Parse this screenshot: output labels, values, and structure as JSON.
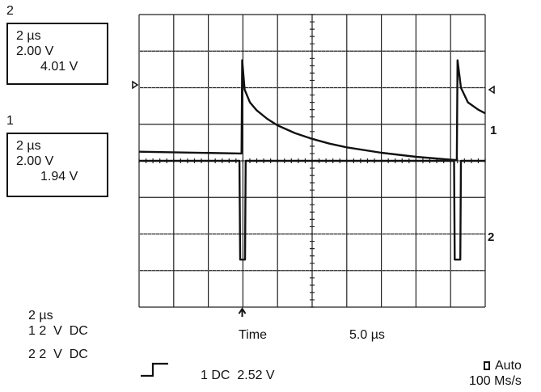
{
  "channel2_box": {
    "number": "2",
    "timebase": "2 µs",
    "scale": "2.00 V",
    "reading": "4.01 V"
  },
  "channel1_box": {
    "number": "1",
    "timebase": "2 µs",
    "scale": "2.00 V",
    "reading": "1.94 V"
  },
  "settings": {
    "timebase": "2 µs",
    "ch1": "1 2  V  DC",
    "ch2": "2 2  V  DC"
  },
  "time_label": "Time",
  "time_value": "5.0 µs",
  "trigger_info": "1 DC  2.52 V",
  "acquisition": {
    "mode": "Auto",
    "rate": "100 Ms/s"
  },
  "trace_markers": {
    "ch1": "1",
    "ch2": "2"
  },
  "colors": {
    "trace": "#111111",
    "grid": "#222222",
    "background": "#ffffff"
  },
  "icons": {
    "trigger_edge": "rising-edge-icon",
    "trigger_position": "up-arrow-icon",
    "reference_levels": "triangle-marker-icon"
  },
  "chart_data": {
    "type": "line",
    "grid": true,
    "series": [
      {
        "name": "1",
        "x": [
          0,
          2.96,
          2.98,
          3.05,
          3.2,
          3.4,
          3.7,
          4.0,
          4.5,
          5.0,
          5.5,
          6.0,
          7.0,
          8.0,
          9.0,
          9.18,
          9.2,
          9.3,
          9.5,
          9.8,
          10.0
        ],
        "y": [
          0.25,
          0.2,
          2.75,
          1.95,
          1.6,
          1.38,
          1.15,
          0.97,
          0.76,
          0.6,
          0.47,
          0.37,
          0.22,
          0.11,
          0.03,
          0.02,
          2.75,
          2.0,
          1.6,
          1.4,
          1.3
        ]
      },
      {
        "name": "2",
        "x": [
          0,
          2.9,
          2.92,
          3.06,
          3.08,
          9.1,
          9.12,
          9.28,
          9.3,
          10.0
        ],
        "y": [
          0,
          0,
          -2.7,
          -2.7,
          0,
          0,
          -2.7,
          -2.7,
          0,
          0
        ]
      }
    ],
    "xlim": [
      0,
      10
    ],
    "ylim": [
      -4,
      4
    ]
  }
}
